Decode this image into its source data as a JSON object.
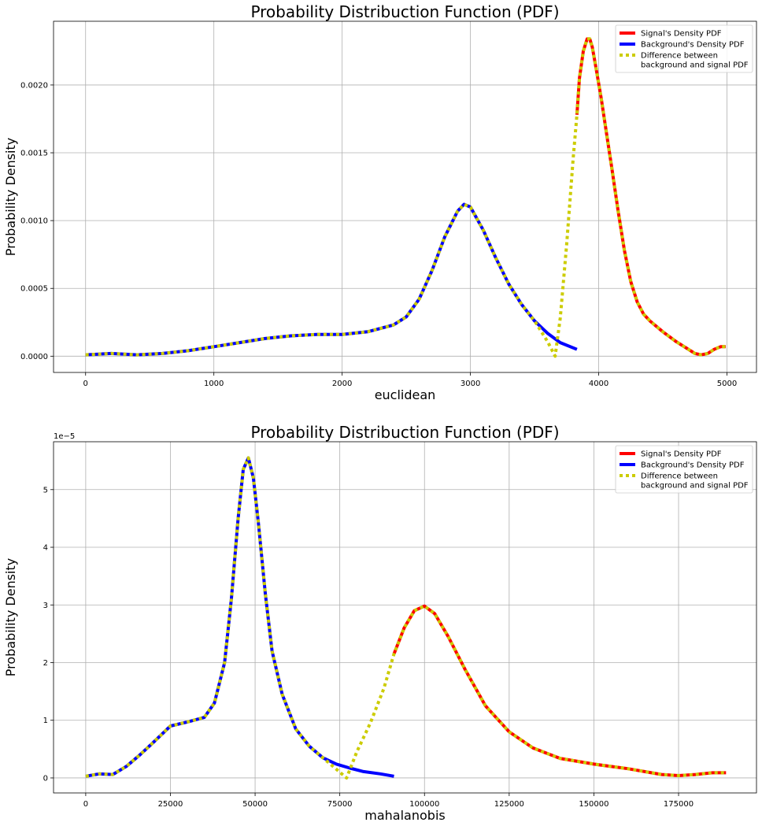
{
  "chart_data": [
    {
      "type": "line",
      "title": "Probability Distribuction Function (PDF)",
      "xlabel": "euclidean",
      "ylabel": "Probability Density",
      "xlim": [
        -250,
        5230
      ],
      "ylim": [
        -0.00012,
        0.00247
      ],
      "x_ticks": [
        0,
        1000,
        2000,
        3000,
        4000,
        5000
      ],
      "x_tick_labels": [
        "0",
        "1000",
        "2000",
        "3000",
        "4000",
        "5000"
      ],
      "y_ticks": [
        0.0,
        0.0005,
        0.001,
        0.0015,
        0.002
      ],
      "y_tick_labels": [
        "0.0000",
        "0.0005",
        "0.0010",
        "0.0015",
        "0.0020"
      ],
      "y_offset_label": "",
      "grid": true,
      "legend_position": "top-right",
      "series": [
        {
          "name": "Signal's Density PDF",
          "color": "#ff0000",
          "style": "solid",
          "x": [
            3830,
            3850,
            3880,
            3910,
            3930,
            3950,
            3980,
            4020,
            4060,
            4100,
            4150,
            4200,
            4250,
            4300,
            4350,
            4400,
            4500,
            4600,
            4700,
            4750,
            4800,
            4850,
            4900,
            4950,
            4990
          ],
          "y": [
            0.00178,
            0.00205,
            0.00225,
            0.00234,
            0.00234,
            0.00228,
            0.00212,
            0.0019,
            0.00165,
            0.0014,
            0.00108,
            0.00078,
            0.00055,
            0.0004,
            0.00031,
            0.00026,
            0.00018,
            0.00011,
            5e-05,
            2e-05,
            1e-05,
            2e-05,
            5e-05,
            7e-05,
            7e-05
          ]
        },
        {
          "name": "Background's Density PDF",
          "color": "#0000ff",
          "style": "solid",
          "x": [
            0,
            200,
            400,
            600,
            800,
            1000,
            1200,
            1400,
            1600,
            1800,
            2000,
            2200,
            2400,
            2500,
            2600,
            2700,
            2800,
            2900,
            2950,
            3000,
            3100,
            3200,
            3300,
            3400,
            3500,
            3600,
            3700,
            3830
          ],
          "y": [
            1e-05,
            2e-05,
            1e-05,
            2e-05,
            4e-05,
            7e-05,
            0.0001,
            0.00013,
            0.00015,
            0.00016,
            0.00016,
            0.00018,
            0.00023,
            0.00029,
            0.00042,
            0.00063,
            0.00088,
            0.00107,
            0.00112,
            0.0011,
            0.00093,
            0.00072,
            0.00053,
            0.00038,
            0.00026,
            0.00017,
            0.0001,
            5e-05
          ]
        },
        {
          "name": "Difference between\nbackground and signal PDF",
          "color": "#cccc00",
          "style": "dotted",
          "x": [
            0,
            200,
            400,
            600,
            800,
            1000,
            1200,
            1400,
            1600,
            1800,
            2000,
            2200,
            2400,
            2500,
            2600,
            2700,
            2800,
            2900,
            2950,
            3000,
            3100,
            3200,
            3300,
            3400,
            3500,
            3600,
            3660,
            3700,
            3750,
            3800,
            3830,
            3850,
            3880,
            3910,
            3930,
            3950,
            3980,
            4020,
            4060,
            4100,
            4150,
            4200,
            4250,
            4300,
            4350,
            4400,
            4500,
            4600,
            4700,
            4750,
            4800,
            4850,
            4900,
            4950,
            4990
          ],
          "y": [
            1e-05,
            2e-05,
            1e-05,
            2e-05,
            4e-05,
            7e-05,
            0.0001,
            0.00013,
            0.00015,
            0.00016,
            0.00016,
            0.00018,
            0.00023,
            0.00029,
            0.00042,
            0.00063,
            0.00088,
            0.00107,
            0.00112,
            0.0011,
            0.00093,
            0.00072,
            0.00053,
            0.00038,
            0.00026,
            0.00011,
            0.0,
            0.00028,
            0.00082,
            0.00145,
            0.00178,
            0.00205,
            0.00225,
            0.00234,
            0.00234,
            0.00228,
            0.00212,
            0.0019,
            0.00165,
            0.0014,
            0.00108,
            0.00078,
            0.00055,
            0.0004,
            0.00031,
            0.00026,
            0.00018,
            0.00011,
            5e-05,
            2e-05,
            1e-05,
            2e-05,
            5e-05,
            7e-05,
            7e-05
          ]
        }
      ]
    },
    {
      "type": "line",
      "title": "Probability Distribuction Function (PDF)",
      "xlabel": "mahalanobis",
      "ylabel": "Probability Density",
      "xlim": [
        -9500,
        198000
      ],
      "ylim": [
        -2.6e-06,
        5.83e-05
      ],
      "x_ticks": [
        0,
        25000,
        50000,
        75000,
        100000,
        125000,
        150000,
        175000
      ],
      "x_tick_labels": [
        "0",
        "25000",
        "50000",
        "75000",
        "100000",
        "125000",
        "150000",
        "175000"
      ],
      "y_ticks": [
        0,
        1e-05,
        2e-05,
        3e-05,
        4e-05,
        5e-05
      ],
      "y_tick_labels": [
        "0",
        "1",
        "2",
        "3",
        "4",
        "5"
      ],
      "y_offset_label": "1e−5",
      "grid": true,
      "legend_position": "top-right",
      "series": [
        {
          "name": "Signal's Density PDF",
          "color": "#ff0000",
          "style": "solid",
          "x": [
            91000,
            94000,
            97000,
            100000,
            103000,
            107000,
            112000,
            118000,
            125000,
            132000,
            140000,
            150000,
            160000,
            170000,
            175000,
            180000,
            185000,
            189000
          ],
          "y": [
            2.15e-05,
            2.6e-05,
            2.9e-05,
            2.98e-05,
            2.85e-05,
            2.45e-05,
            1.88e-05,
            1.25e-05,
            8e-06,
            5.2e-06,
            3.4e-06,
            2.4e-06,
            1.6e-06,
            6e-07,
            4e-07,
            6e-07,
            9e-07,
            9e-07
          ]
        },
        {
          "name": "Background's Density PDF",
          "color": "#0000ff",
          "style": "solid",
          "x": [
            0,
            4000,
            8000,
            12000,
            16000,
            20000,
            25000,
            30000,
            35000,
            38000,
            41000,
            43000,
            45000,
            46500,
            48000,
            49500,
            51000,
            53000,
            55000,
            58000,
            62000,
            66000,
            70000,
            74000,
            78000,
            82000,
            87000,
            91000
          ],
          "y": [
            3e-07,
            7e-07,
            6e-07,
            2e-06,
            4e-06,
            6.2e-06,
            9e-06,
            9.7e-06,
            1.05e-05,
            1.3e-05,
            2e-05,
            3.1e-05,
            4.5e-05,
            5.35e-05,
            5.55e-05,
            5.2e-05,
            4.4e-05,
            3.2e-05,
            2.2e-05,
            1.45e-05,
            8.5e-06,
            5.5e-06,
            3.5e-06,
            2.4e-06,
            1.7e-06,
            1.1e-06,
            7e-07,
            3e-07
          ]
        },
        {
          "name": "Difference between\nbackground and signal PDF",
          "color": "#cccc00",
          "style": "dotted",
          "x": [
            0,
            4000,
            8000,
            12000,
            16000,
            20000,
            25000,
            30000,
            35000,
            38000,
            41000,
            43000,
            45000,
            46500,
            48000,
            49500,
            51000,
            53000,
            55000,
            58000,
            62000,
            66000,
            70000,
            74000,
            77000,
            80000,
            84000,
            88000,
            91000,
            94000,
            97000,
            100000,
            103000,
            107000,
            112000,
            118000,
            125000,
            132000,
            140000,
            150000,
            160000,
            170000,
            175000,
            180000,
            185000,
            189000
          ],
          "y": [
            3e-07,
            7e-07,
            6e-07,
            2e-06,
            4e-06,
            6.2e-06,
            9e-06,
            9.7e-06,
            1.05e-05,
            1.3e-05,
            2e-05,
            3.1e-05,
            4.5e-05,
            5.35e-05,
            5.55e-05,
            5.2e-05,
            4.4e-05,
            3.2e-05,
            2.2e-05,
            1.45e-05,
            8.5e-06,
            5.5e-06,
            3.5e-06,
            1.5e-06,
            0.0,
            4.5e-06,
            9.5e-06,
            1.55e-05,
            2.15e-05,
            2.6e-05,
            2.9e-05,
            2.98e-05,
            2.85e-05,
            2.45e-05,
            1.88e-05,
            1.25e-05,
            8e-06,
            5.2e-06,
            3.4e-06,
            2.4e-06,
            1.6e-06,
            6e-07,
            4e-07,
            6e-07,
            9e-07,
            9e-07
          ]
        }
      ]
    }
  ]
}
